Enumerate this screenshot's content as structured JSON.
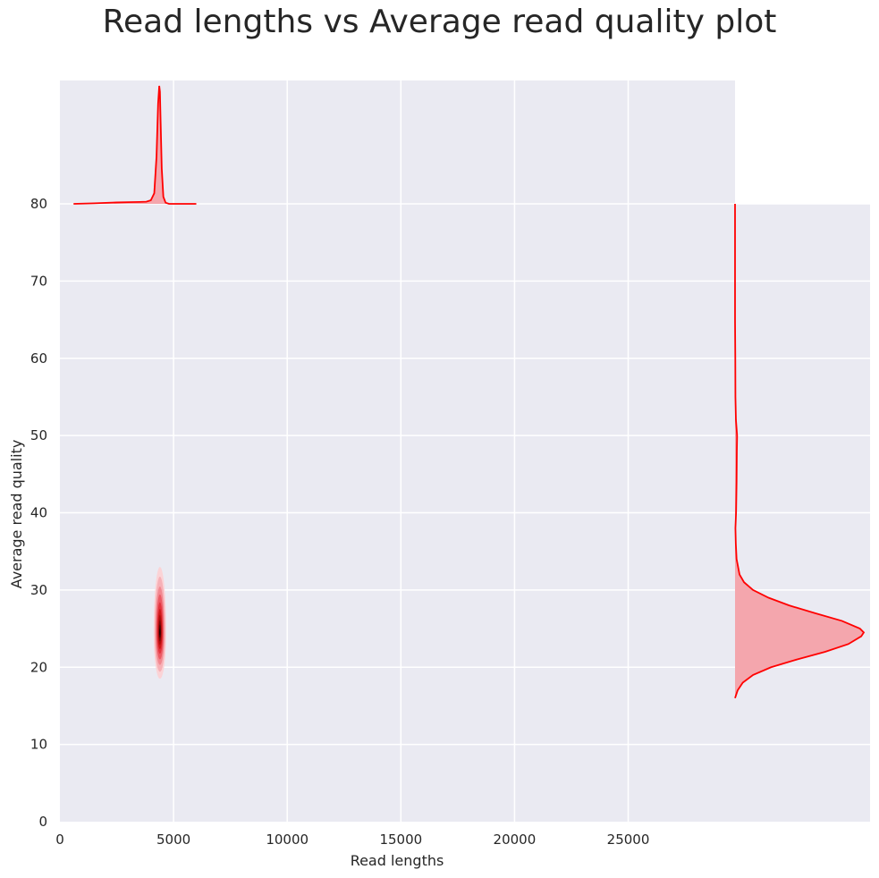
{
  "title": "Read lengths vs Average read quality plot",
  "chart_data": {
    "type": "kde-jointplot",
    "title": "Read lengths vs Average read quality plot",
    "xlabel": "Read lengths",
    "ylabel": "Average read quality",
    "xlim": [
      0,
      29700
    ],
    "ylim": [
      0,
      80
    ],
    "xticks": [
      0,
      5000,
      10000,
      15000,
      20000,
      25000
    ],
    "yticks": [
      0,
      10,
      20,
      30,
      40,
      50,
      60,
      70,
      80
    ],
    "grid": true,
    "colors": {
      "line": "#ff0000",
      "fill": "#f4a6ad",
      "background": "#eaeaf2",
      "grid": "#ffffff"
    },
    "joint_kde": {
      "center_x": 4400,
      "center_y": 24.5,
      "x_extent": [
        4100,
        4650
      ],
      "y_extent": [
        18.5,
        33
      ]
    },
    "marginal_x": {
      "x": [
        600,
        1500,
        2500,
        3000,
        3500,
        3800,
        4000,
        4150,
        4250,
        4320,
        4370,
        4400,
        4430,
        4480,
        4550,
        4650,
        4800,
        5200,
        6000
      ],
      "density": [
        0.0,
        0.005,
        0.012,
        0.014,
        0.016,
        0.018,
        0.03,
        0.09,
        0.4,
        0.85,
        1.0,
        0.95,
        0.7,
        0.3,
        0.06,
        0.01,
        0.0,
        0.0,
        0.0
      ]
    },
    "marginal_y": {
      "y": [
        16,
        17,
        18,
        19,
        20,
        21,
        22,
        23,
        24,
        24.5,
        25,
        26,
        27,
        28,
        29,
        30,
        31,
        32,
        34,
        36,
        38,
        40,
        42,
        44,
        46,
        48,
        50,
        52,
        55,
        60,
        65,
        70,
        75,
        80
      ],
      "density": [
        0.0,
        0.02,
        0.06,
        0.14,
        0.28,
        0.48,
        0.7,
        0.88,
        0.98,
        1.0,
        0.97,
        0.83,
        0.62,
        0.42,
        0.26,
        0.14,
        0.07,
        0.035,
        0.012,
        0.006,
        0.003,
        0.008,
        0.01,
        0.012,
        0.013,
        0.014,
        0.016,
        0.007,
        0.003,
        0.002,
        0.0,
        0.0,
        0.0,
        0.0
      ]
    }
  }
}
